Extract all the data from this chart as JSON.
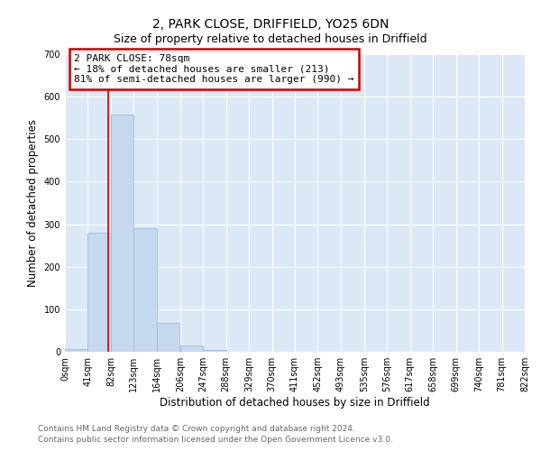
{
  "title": "2, PARK CLOSE, DRIFFIELD, YO25 6DN",
  "subtitle": "Size of property relative to detached houses in Driffield",
  "xlabel": "Distribution of detached houses by size in Driffield",
  "ylabel": "Number of detached properties",
  "bin_edges": [
    0,
    41,
    82,
    123,
    164,
    206,
    247,
    288,
    329,
    370,
    411,
    452,
    493,
    535,
    576,
    617,
    658,
    699,
    740,
    781,
    822
  ],
  "bin_labels": [
    "0sqm",
    "41sqm",
    "82sqm",
    "123sqm",
    "164sqm",
    "206sqm",
    "247sqm",
    "288sqm",
    "329sqm",
    "370sqm",
    "411sqm",
    "452sqm",
    "493sqm",
    "535sqm",
    "576sqm",
    "617sqm",
    "658sqm",
    "699sqm",
    "740sqm",
    "781sqm",
    "822sqm"
  ],
  "counts": [
    7,
    280,
    558,
    290,
    67,
    14,
    5,
    0,
    0,
    0,
    0,
    0,
    0,
    0,
    0,
    0,
    0,
    0,
    0,
    0
  ],
  "bar_color": "#c5d8ee",
  "bar_edgecolor": "#a0bcd8",
  "vline_x": 78,
  "vline_color": "#cc0000",
  "ylim": [
    0,
    700
  ],
  "yticks": [
    0,
    100,
    200,
    300,
    400,
    500,
    600,
    700
  ],
  "annotation_box_text": "2 PARK CLOSE: 78sqm\n← 18% of detached houses are smaller (213)\n81% of semi-detached houses are larger (990) →",
  "footer_line1": "Contains HM Land Registry data © Crown copyright and database right 2024.",
  "footer_line2": "Contains public sector information licensed under the Open Government Licence v3.0.",
  "plot_bg_color": "#dce8f5",
  "fig_bg_color": "#ffffff",
  "grid_color": "#ffffff",
  "title_fontsize": 10,
  "subtitle_fontsize": 9,
  "axis_label_fontsize": 8.5,
  "tick_fontsize": 7,
  "footer_fontsize": 6.5
}
